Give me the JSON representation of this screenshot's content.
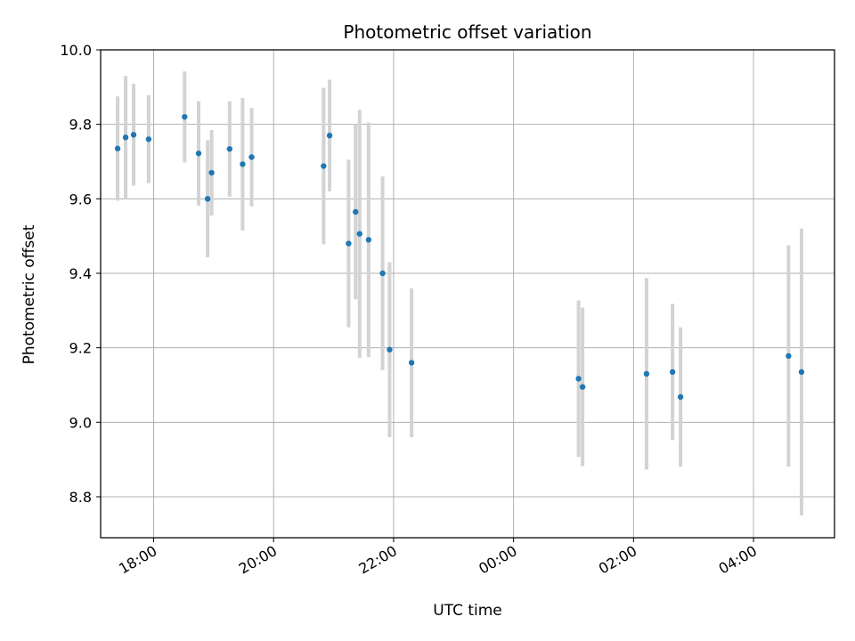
{
  "chart_data": {
    "type": "scatter",
    "title": "Photometric offset variation",
    "xlabel": "UTC time",
    "ylabel": "Photometric offset",
    "xlim": [
      "17:07",
      "05:21"
    ],
    "ylim": [
      8.69,
      10.0
    ],
    "grid": true,
    "x_ticks": [
      "18:00",
      "20:00",
      "22:00",
      "00:00",
      "02:00",
      "04:00"
    ],
    "y_ticks": [
      "8.8",
      "9.0",
      "9.2",
      "9.4",
      "9.6",
      "9.8",
      "10.0"
    ],
    "point_color": "#1f77b4",
    "errorbar_color": "#d3d3d3",
    "series": [
      {
        "points": [
          {
            "t": "17:24",
            "y": 9.735,
            "yerr": 0.14
          },
          {
            "t": "17:32",
            "y": 9.765,
            "yerr": 0.165
          },
          {
            "t": "17:40",
            "y": 9.772,
            "yerr": 0.137
          },
          {
            "t": "17:55",
            "y": 9.76,
            "yerr": 0.118
          },
          {
            "t": "18:31",
            "y": 9.82,
            "yerr": 0.122
          },
          {
            "t": "18:45",
            "y": 9.722,
            "yerr": 0.14
          },
          {
            "t": "18:54",
            "y": 9.6,
            "yerr": 0.157
          },
          {
            "t": "18:58",
            "y": 9.67,
            "yerr": 0.115
          },
          {
            "t": "19:16",
            "y": 9.734,
            "yerr": 0.128
          },
          {
            "t": "19:29",
            "y": 9.693,
            "yerr": 0.178
          },
          {
            "t": "19:38",
            "y": 9.712,
            "yerr": 0.132
          },
          {
            "t": "20:50",
            "y": 9.688,
            "yerr": 0.21
          },
          {
            "t": "20:56",
            "y": 9.77,
            "yerr": 0.15
          },
          {
            "t": "21:15",
            "y": 9.48,
            "yerr": 0.225
          },
          {
            "t": "21:22",
            "y": 9.565,
            "yerr": 0.235
          },
          {
            "t": "21:26",
            "y": 9.506,
            "yerr": 0.333
          },
          {
            "t": "21:35",
            "y": 9.49,
            "yerr": 0.315
          },
          {
            "t": "21:49",
            "y": 9.4,
            "yerr": 0.26
          },
          {
            "t": "21:56",
            "y": 9.195,
            "yerr": 0.235
          },
          {
            "t": "22:18",
            "y": 9.16,
            "yerr": 0.2
          },
          {
            "t": "01:05",
            "y": 9.117,
            "yerr": 0.21
          },
          {
            "t": "01:09",
            "y": 9.095,
            "yerr": 0.213
          },
          {
            "t": "02:13",
            "y": 9.13,
            "yerr": 0.257
          },
          {
            "t": "02:39",
            "y": 9.135,
            "yerr": 0.183
          },
          {
            "t": "02:47",
            "y": 9.068,
            "yerr": 0.187
          },
          {
            "t": "04:35",
            "y": 9.178,
            "yerr": 0.297
          },
          {
            "t": "04:48",
            "y": 9.135,
            "yerr": 0.385
          }
        ]
      }
    ]
  }
}
